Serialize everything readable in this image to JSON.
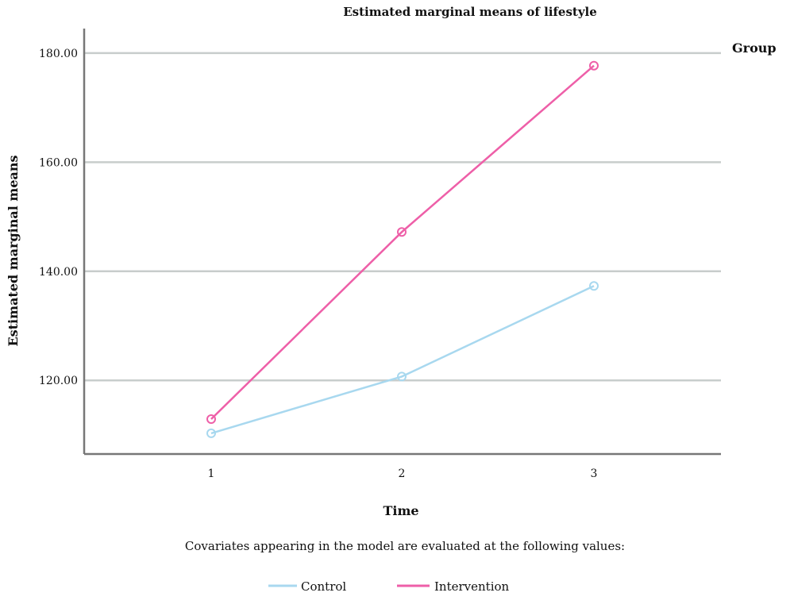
{
  "chart_data": {
    "type": "line",
    "title": "Estimated marginal means of lifestyle",
    "xlabel": "Time",
    "ylabel": "Estimated marginal means",
    "categories": [
      "1",
      "2",
      "3"
    ],
    "y_ticks": [
      120,
      140,
      160,
      180
    ],
    "y_tick_labels": [
      "120.00",
      "140.00",
      "160.00",
      "180.00"
    ],
    "ylim": [
      106.5,
      184.5
    ],
    "grid": true,
    "legend_title": "Group",
    "note": "Covariates appearing in the model are evaluated at the following values:",
    "series": [
      {
        "name": "Control",
        "color": "#a8d8ef",
        "values": [
          110.3,
          120.7,
          137.3
        ]
      },
      {
        "name": "Intervention",
        "color": "#ee5fa8",
        "values": [
          112.9,
          147.2,
          177.7
        ]
      }
    ]
  }
}
